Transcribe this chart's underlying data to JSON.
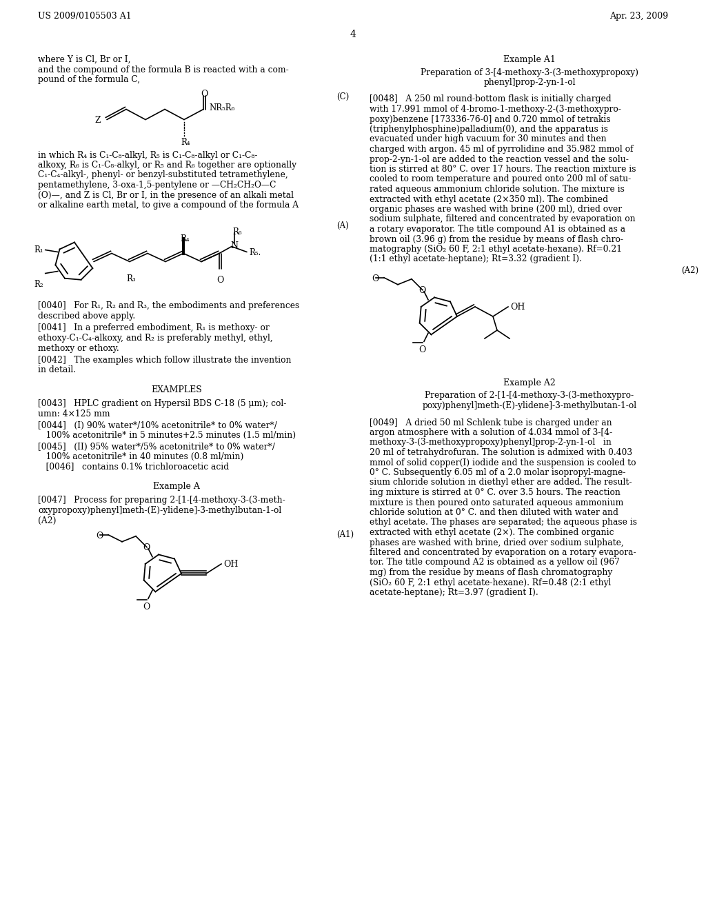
{
  "bg": "#ffffff",
  "header_left": "US 2009/0105503 A1",
  "header_right": "Apr. 23, 2009",
  "page_num": "4",
  "lc_intro": [
    "where Y is Cl, Br or I,",
    "and the compound of the formula B is reacted with a com-",
    "pound of the formula C,"
  ],
  "lc_after_C": [
    "in which R₄ is C₁-C₈-alkyl, R₅ is C₁-C₈-alkyl or C₁-C₈-",
    "alkoxy, R₆ is C₁-C₈-alkyl, or R₅ and R₆ together are optionally",
    "C₁-C₄-alkyl-, phenyl- or benzyl-substituted tetramethylene,",
    "pentamethylene, 3-oxa-1,5-pentylene or —CH₂CH₂O—C",
    "(O)—, and Z is Cl, Br or I, in the presence of an alkali metal",
    "or alkaline earth metal, to give a compound of the formula A"
  ],
  "p0040": "[0040]   For R₁, R₂ and R₃, the embodiments and preferences\ndescribed above apply.",
  "p0041": "[0041]   In a preferred embodiment, R₁ is methoxy- or\nethoxy-C₁-C₄-alkoxy, and R₂ is preferably methyl, ethyl,\nmethoxy or ethoxy.",
  "p0042": "[0042]   The examples which follow illustrate the invention\nin detail.",
  "examples_hdr": "EXAMPLES",
  "p0043": "[0043]   HPLC gradient on Hypersil BDS C-18 (5 μm); col-\numn: 4×125 mm",
  "p0044l1": "[0044]   (I) 90% water*/10% acetonitrile* to 0% water*/",
  "p0044l2": "   100% acetonitrile* in 5 minutes+2.5 minutes (1.5 ml/min)",
  "p0045l1": "[0045]   (II) 95% water*/5% acetonitrile* to 0% water*/",
  "p0045l2": "   100% acetonitrile* in 40 minutes (0.8 ml/min)",
  "p0046": "   [0046]   contains 0.1% trichloroacetic acid",
  "exA_hdr": "Example A",
  "p0047l1": "[0047]   Process for preparing 2-[1-[4-methoxy-3-(3-meth-",
  "p0047l2": "oxypropoxy)phenyl]meth-(E)-ylidene]-3-methylbutan-1-ol",
  "p0047l3": "(A2)",
  "exA1_hdr": "Example A1",
  "exA1_title1": "Preparation of 3-[4-methoxy-3-(3-methoxypropoxy)",
  "exA1_title2": "phenyl]prop-2-yn-1-ol",
  "p0048": "[0048]   A 250 ml round-bottom flask is initially charged\nwith 17.991 mmol of 4-bromo-1-methoxy-2-(3-methoxypro-\npoxy)benzene [173336-76-0] and 0.720 mmol of tetrakis\n(triphenylphosphine)palladium(0), and the apparatus is\nevacuated under high vacuum for 30 minutes and then\ncharged with argon. 45 ml of pyrrolidine and 35.982 mmol of\nprop-2-yn-1-ol are added to the reaction vessel and the solu-\ntion is stirred at 80° C. over 17 hours. The reaction mixture is\ncooled to room temperature and poured onto 200 ml of satu-\nrated aqueous ammonium chloride solution. The mixture is\nextracted with ethyl acetate (2×350 ml). The combined\norganic phases are washed with brine (200 ml), dried over\nsodium sulphate, filtered and concentrated by evaporation on\na rotary evaporator. The title compound A1 is obtained as a\nbrown oil (3.96 g) from the residue by means of flash chro-\nmatography (SiO₂ 60 F, 2:1 ethyl acetate-hexane). Rf=0.21\n(1:1 ethyl acetate-heptane); Rt=3.32 (gradient I).",
  "exA2_hdr": "Example A2",
  "exA2_title1": "Preparation of 2-[1-[4-methoxy-3-(3-methoxypro-",
  "exA2_title2": "poxy)phenyl]meth-(E)-ylidene]-3-methylbutan-1-ol",
  "p0049": "[0049]   A dried 50 ml Schlenk tube is charged under an\nargon atmosphere with a solution of 4.034 mmol of 3-[4-\nmethoxy-3-(3-methoxypropoxy)phenyl]prop-2-yn-1-ol   in\n20 ml of tetrahydrofuran. The solution is admixed with 0.403\nmmol of solid copper(I) iodide and the suspension is cooled to\n0° C. Subsequently 6.05 ml of a 2.0 molar isopropyl-magne-\nsium chloride solution in diethyl ether are added. The result-\ning mixture is stirred at 0° C. over 3.5 hours. The reaction\nmixture is then poured onto saturated aqueous ammonium\nchloride solution at 0° C. and then diluted with water and\nethyl acetate. The phases are separated; the aqueous phase is\nextracted with ethyl acetate (2×). The combined organic\nphases are washed with brine, dried over sodium sulphate,\nfiltered and concentrated by evaporation on a rotary evapora-\ntor. The title compound A2 is obtained as a yellow oil (967\nmg) from the residue by means of flash chromatography\n(SiO₂ 60 F, 2:1 ethyl acetate-hexane). Rf=0.48 (2:1 ethyl\nacetate-heptane); Rt=3.97 (gradient I)."
}
